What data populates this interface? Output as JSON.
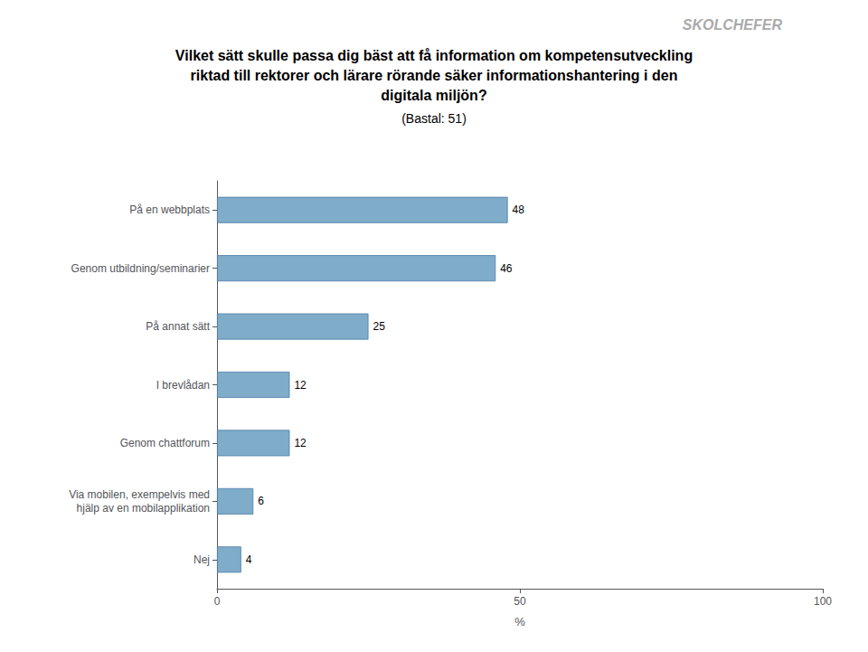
{
  "chart_data": {
    "type": "bar",
    "orientation": "horizontal",
    "title": "Vilket sätt skulle passa dig bäst att få information om kompetensutveckling\nriktad till rektorer och lärare rörande säker informationshantering i den\ndigitala miljön?",
    "subtitle": "(Bastal: 51)",
    "annotations": [
      "SKOLCHEFER"
    ],
    "categories": [
      "På en webbplats",
      "Genom utbildning/seminarier",
      "På annat sätt",
      "I brevlådan",
      "Genom chattforum",
      "Via mobilen, exempelvis med\nhjälp av en mobilapplikation",
      "Nej"
    ],
    "values": [
      48,
      46,
      25,
      12,
      12,
      6,
      4
    ],
    "color": "#7facc8",
    "xlabel": "%",
    "xlim": [
      0,
      100
    ],
    "xticks": [
      0,
      50,
      100
    ],
    "grid": false,
    "data_labels": true
  }
}
